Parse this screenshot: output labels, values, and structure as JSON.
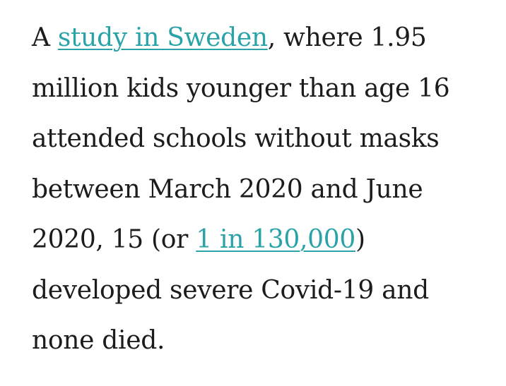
{
  "article": {
    "paragraph": {
      "line1_pre": "A ",
      "link_study": "study in Sweden",
      "line1_post": ", where 1.95",
      "line2": "million kids younger than age 16",
      "line3": "attended schools without masks",
      "line4": "between March 2020 and June",
      "line5_pre": "2020, 15 (or ",
      "link_ratio": "1 in 130,000",
      "line5_post": ")",
      "line6": "developed severe Covid-19 and",
      "line7": "none died."
    }
  },
  "colors": {
    "text": "#1c1c1c",
    "link": "#2aa3a8",
    "background": "#ffffff"
  }
}
